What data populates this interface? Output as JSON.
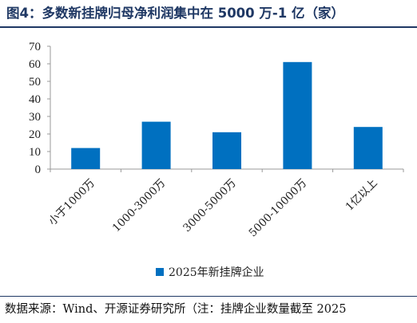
{
  "title": "图4：多数新挂牌归母净利润集中在 5000 万-1 亿（家）",
  "source": "数据来源：Wind、开源证券研究所（注：挂牌企业数量截至 2025",
  "colors": {
    "bar": "#0070c0",
    "title": "#1f3864",
    "axis": "#999999"
  },
  "chart_data": {
    "type": "bar",
    "categories": [
      "小于1000万",
      "1000-3000万",
      "3000-5000万",
      "5000-10000万",
      "1亿以上"
    ],
    "series": [
      {
        "name": "2025年新挂牌企业",
        "values": [
          12,
          27,
          21,
          61,
          24
        ]
      }
    ],
    "ylim": [
      0,
      70
    ],
    "yticks": [
      0,
      10,
      20,
      30,
      40,
      50,
      60,
      70
    ],
    "grid": false,
    "legend": "bottom"
  }
}
